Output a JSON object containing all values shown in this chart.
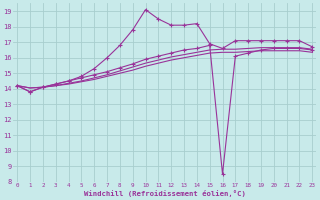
{
  "xlabel": "Windchill (Refroidissement éolien,°C)",
  "background_color": "#c8eaea",
  "grid_color": "#a8cece",
  "line_color": "#993399",
  "xlim": [
    0,
    23
  ],
  "ylim": [
    8,
    19.5
  ],
  "xticks": [
    0,
    1,
    2,
    3,
    4,
    5,
    6,
    7,
    8,
    9,
    10,
    11,
    12,
    13,
    14,
    15,
    16,
    17,
    18,
    19,
    20,
    21,
    22,
    23
  ],
  "yticks": [
    8,
    9,
    10,
    11,
    12,
    13,
    14,
    15,
    16,
    17,
    18,
    19
  ],
  "series": [
    {
      "x": [
        0,
        1,
        2,
        3,
        4,
        5,
        6,
        7,
        8,
        9,
        10,
        11,
        12,
        13,
        14,
        15,
        16,
        17,
        18,
        19,
        20,
        21,
        22,
        23
      ],
      "y": [
        14.2,
        13.8,
        14.1,
        14.3,
        14.5,
        14.8,
        15.3,
        16.0,
        16.8,
        17.8,
        19.1,
        18.5,
        18.1,
        18.1,
        18.2,
        16.9,
        16.6,
        17.1,
        17.1,
        17.1,
        17.1,
        17.1,
        17.1,
        16.7
      ],
      "marker": "+"
    },
    {
      "x": [
        0,
        1,
        2,
        3,
        4,
        5,
        6,
        7,
        8,
        9,
        10,
        11,
        12,
        13,
        14,
        15,
        16,
        17,
        18,
        19,
        20,
        21,
        22,
        23
      ],
      "y": [
        14.2,
        13.8,
        14.1,
        14.3,
        14.5,
        14.7,
        14.9,
        15.1,
        15.35,
        15.6,
        15.9,
        16.1,
        16.3,
        16.5,
        16.6,
        16.8,
        8.5,
        16.1,
        16.3,
        16.5,
        16.6,
        16.6,
        16.6,
        16.5
      ],
      "marker": "+"
    },
    {
      "x": [
        0,
        1,
        2,
        3,
        4,
        5,
        6,
        7,
        8,
        9,
        10,
        11,
        12,
        13,
        14,
        15,
        16,
        17,
        18,
        19,
        20,
        21,
        22,
        23
      ],
      "y": [
        14.2,
        14.05,
        14.1,
        14.2,
        14.35,
        14.5,
        14.7,
        14.9,
        15.15,
        15.4,
        15.65,
        15.85,
        16.05,
        16.2,
        16.35,
        16.5,
        16.55,
        16.55,
        16.6,
        16.65,
        16.65,
        16.65,
        16.65,
        16.55
      ],
      "marker": null
    },
    {
      "x": [
        0,
        1,
        2,
        3,
        4,
        5,
        6,
        7,
        8,
        9,
        10,
        11,
        12,
        13,
        14,
        15,
        16,
        17,
        18,
        19,
        20,
        21,
        22,
        23
      ],
      "y": [
        14.2,
        14.05,
        14.1,
        14.2,
        14.3,
        14.45,
        14.6,
        14.8,
        15.0,
        15.2,
        15.45,
        15.65,
        15.85,
        16.0,
        16.15,
        16.3,
        16.35,
        16.35,
        16.4,
        16.45,
        16.45,
        16.45,
        16.45,
        16.35
      ],
      "marker": null
    }
  ]
}
